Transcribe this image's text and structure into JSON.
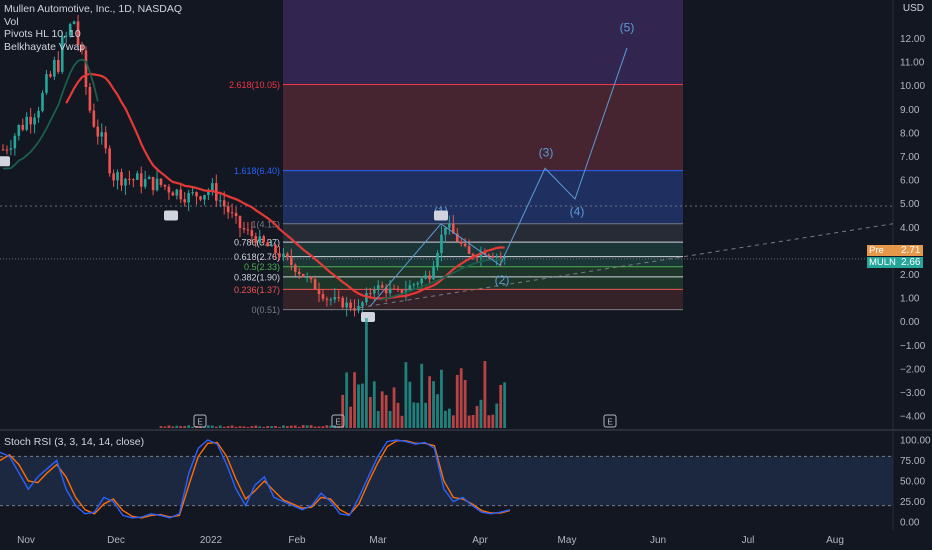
{
  "legend": {
    "title": "Mullen Automotive, Inc., 1D, NASDAQ",
    "vol": "Vol",
    "pivots": "Pivots HL 10, 10",
    "vwap": "Belkhayate Vwap"
  },
  "currency_badge": "USD",
  "stoch_legend": "Stoch RSI (3, 3, 14, 14, close)",
  "price_tags": {
    "prev_label": "Pre",
    "prev_value": "2.71",
    "ticker_label": "MULN",
    "ticker_value": "2.66"
  },
  "colors": {
    "background": "#131722",
    "up": "#26a69a",
    "down": "#ef5350",
    "ma": "#e53935",
    "vwap": "#1b5e4a",
    "elliott": "#5b9bd5",
    "stoch_k": "#2962ff",
    "stoch_d": "#ff6d00"
  },
  "chart_data": {
    "type": "candlestick",
    "price_axis": {
      "min": -4.0,
      "max": 13.0,
      "ticks": [
        "12.00",
        "11.00",
        "10.00",
        "9.00",
        "8.00",
        "7.00",
        "6.00",
        "5.00",
        "4.00",
        "3.00",
        "2.00",
        "1.00",
        "0.00",
        "−1.00",
        "−2.00",
        "−3.00",
        "−4.00"
      ]
    },
    "x_axis_labels": [
      "Nov",
      "Dec",
      "2022",
      "Feb",
      "Mar",
      "Apr",
      "May",
      "Jun",
      "Jul",
      "Aug"
    ],
    "fib_levels": [
      {
        "label": "0(0.51)",
        "value": 0.51,
        "color": "#787b86"
      },
      {
        "label": "0.236(1.37)",
        "value": 1.37,
        "color": "#ef5350"
      },
      {
        "label": "0.382(1.90)",
        "value": 1.9,
        "color": "#d1d4dc"
      },
      {
        "label": "0.5(2.33)",
        "value": 2.33,
        "color": "#4caf50"
      },
      {
        "label": "0.618(2.76)",
        "value": 2.76,
        "color": "#d1d4dc"
      },
      {
        "label": "0.786(3.37)",
        "value": 3.37,
        "color": "#d1d4dc"
      },
      {
        "label": "1(4.15)",
        "value": 4.15,
        "color": "#787b86"
      },
      {
        "label": "1.618(6.40)",
        "value": 6.4,
        "color": "#2962ff"
      },
      {
        "label": "2.618(10.05)",
        "value": 10.05,
        "color": "#f23645"
      }
    ],
    "elliott_wave_labels": [
      {
        "label": "(1)",
        "price": 4.5
      },
      {
        "label": "(2)",
        "price": 1.6
      },
      {
        "label": "(3)",
        "price": 7.0
      },
      {
        "label": "(4)",
        "price": 4.5
      },
      {
        "label": "(5)",
        "price": 12.3
      }
    ],
    "elliott_wave_path": [
      {
        "date": "Feb 27",
        "price": 0.65
      },
      {
        "date": "Mar 21",
        "price": 4.15
      },
      {
        "date": "Apr 7",
        "price": 2.4
      },
      {
        "date": "Apr 26",
        "price": 6.5
      },
      {
        "date": "May 5",
        "price": 5.2
      },
      {
        "date": "May 24",
        "price": 11.6
      }
    ],
    "candles_summary": {
      "start_price": 7.3,
      "peak_price": 12.8,
      "low_price": 0.55,
      "last_price": 2.66
    },
    "pivot_markers": [
      "H",
      "L",
      "H",
      "L",
      "H",
      "L",
      "H"
    ],
    "earnings_markers": 3,
    "stoch_rsi": {
      "ticks": [
        "100.00",
        "75.00",
        "50.00",
        "25.00",
        "0.00"
      ],
      "bands": [
        80,
        20
      ],
      "k": [
        85,
        80,
        60,
        40,
        55,
        65,
        75,
        40,
        20,
        10,
        12,
        30,
        25,
        8,
        5,
        6,
        10,
        8,
        5,
        10,
        60,
        90,
        100,
        95,
        70,
        40,
        20,
        45,
        55,
        30,
        25,
        20,
        15,
        20,
        35,
        25,
        10,
        8,
        30,
        55,
        80,
        98,
        100,
        98,
        95,
        97,
        90,
        40,
        25,
        30,
        20,
        12,
        10,
        12,
        15
      ],
      "d": [
        75,
        82,
        70,
        50,
        48,
        60,
        70,
        55,
        30,
        15,
        10,
        22,
        28,
        14,
        7,
        5,
        8,
        9,
        6,
        8,
        45,
        80,
        96,
        97,
        80,
        52,
        28,
        38,
        50,
        38,
        27,
        22,
        17,
        18,
        30,
        28,
        15,
        9,
        22,
        48,
        72,
        92,
        99,
        99,
        96,
        96,
        93,
        50,
        30,
        28,
        22,
        14,
        11,
        11,
        14
      ]
    }
  }
}
